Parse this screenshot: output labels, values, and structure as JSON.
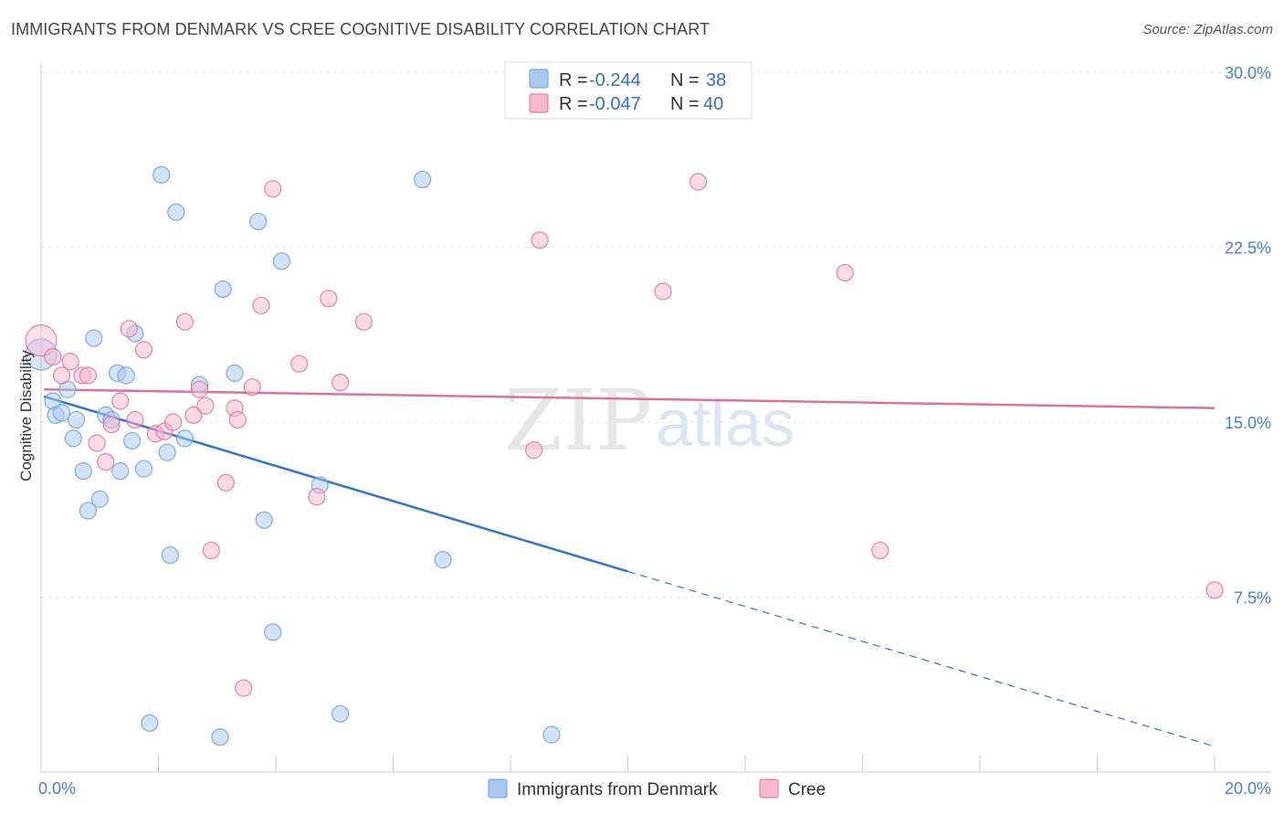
{
  "header": {
    "title": "IMMIGRANTS FROM DENMARK VS CREE COGNITIVE DISABILITY CORRELATION CHART",
    "source": "Source: ZipAtlas.com"
  },
  "watermark": {
    "zip": "ZIP",
    "atlas": "atlas"
  },
  "legend": {
    "rows": [
      {
        "r_label": "R =",
        "r_value": "-0.244",
        "n_label": "N =",
        "n_value": "38",
        "color": "#a8c8f0"
      },
      {
        "r_label": "R =",
        "r_value": "-0.047",
        "n_label": "N =",
        "n_value": "40",
        "color": "#f5b8cc"
      }
    ]
  },
  "chart_data": {
    "type": "scatter",
    "title": "IMMIGRANTS FROM DENMARK VS CREE COGNITIVE DISABILITY CORRELATION CHART",
    "xlabel": "",
    "ylabel": "Cognitive Disability",
    "xlim": [
      0,
      20
    ],
    "ylim": [
      0,
      30
    ],
    "x_tick_labels": [
      "0.0%",
      "20.0%"
    ],
    "y_ticks": [
      7.5,
      15.0,
      22.5,
      30.0
    ],
    "y_tick_labels": [
      "7.5%",
      "15.0%",
      "22.5%",
      "30.0%"
    ],
    "grid": true,
    "series": [
      {
        "name": "Immigrants from Denmark",
        "color": "#6a9ee0",
        "fill": "#a8c8f0",
        "trend": {
          "x0": 0.05,
          "y0": 16.1,
          "x1": 10.0,
          "y1": 8.6,
          "dash_to_x": 20.0,
          "dash_to_y": 1.1
        },
        "points": [
          [
            0.0,
            17.9
          ],
          [
            0.2,
            15.9
          ],
          [
            0.25,
            15.3
          ],
          [
            0.35,
            15.4
          ],
          [
            0.45,
            16.4
          ],
          [
            0.55,
            14.3
          ],
          [
            0.6,
            15.1
          ],
          [
            0.72,
            12.9
          ],
          [
            0.8,
            11.2
          ],
          [
            0.9,
            18.6
          ],
          [
            1.0,
            11.7
          ],
          [
            1.1,
            15.3
          ],
          [
            1.2,
            15.1
          ],
          [
            1.3,
            17.1
          ],
          [
            1.35,
            12.9
          ],
          [
            1.45,
            17.0
          ],
          [
            1.55,
            14.2
          ],
          [
            1.6,
            18.8
          ],
          [
            1.75,
            13.0
          ],
          [
            2.05,
            25.6
          ],
          [
            2.15,
            13.7
          ],
          [
            2.2,
            9.3
          ],
          [
            2.3,
            24.0
          ],
          [
            2.45,
            14.3
          ],
          [
            2.7,
            16.6
          ],
          [
            3.1,
            20.7
          ],
          [
            3.3,
            17.1
          ],
          [
            3.7,
            23.6
          ],
          [
            3.8,
            10.8
          ],
          [
            3.95,
            6.0
          ],
          [
            4.1,
            21.9
          ],
          [
            4.75,
            12.3
          ],
          [
            5.1,
            2.5
          ],
          [
            6.5,
            25.4
          ],
          [
            6.85,
            9.1
          ],
          [
            8.7,
            1.6
          ],
          [
            1.85,
            2.1
          ],
          [
            3.05,
            1.5
          ]
        ]
      },
      {
        "name": "Cree",
        "color": "#e07098",
        "fill": "#f5b8cc",
        "trend": {
          "x0": 0.05,
          "y0": 16.4,
          "x1": 20.0,
          "y1": 15.6
        },
        "points": [
          [
            0.0,
            18.5
          ],
          [
            0.2,
            17.8
          ],
          [
            0.35,
            17.0
          ],
          [
            0.5,
            17.6
          ],
          [
            0.7,
            17.0
          ],
          [
            0.8,
            17.0
          ],
          [
            0.95,
            14.1
          ],
          [
            1.1,
            13.3
          ],
          [
            1.2,
            14.9
          ],
          [
            1.35,
            15.9
          ],
          [
            1.5,
            19.0
          ],
          [
            1.6,
            15.1
          ],
          [
            1.75,
            18.1
          ],
          [
            1.95,
            14.5
          ],
          [
            2.1,
            14.6
          ],
          [
            2.25,
            15.0
          ],
          [
            2.45,
            19.3
          ],
          [
            2.6,
            15.3
          ],
          [
            2.7,
            16.4
          ],
          [
            2.8,
            15.7
          ],
          [
            2.9,
            9.5
          ],
          [
            3.15,
            12.4
          ],
          [
            3.3,
            15.6
          ],
          [
            3.35,
            15.1
          ],
          [
            3.6,
            16.5
          ],
          [
            3.75,
            20.0
          ],
          [
            3.95,
            25.0
          ],
          [
            4.4,
            17.5
          ],
          [
            4.7,
            11.8
          ],
          [
            4.9,
            20.3
          ],
          [
            5.1,
            16.7
          ],
          [
            5.5,
            19.3
          ],
          [
            3.45,
            3.6
          ],
          [
            8.4,
            13.8
          ],
          [
            8.5,
            22.8
          ],
          [
            10.6,
            20.6
          ],
          [
            11.2,
            25.3
          ],
          [
            13.7,
            21.4
          ],
          [
            14.3,
            9.5
          ],
          [
            20.0,
            7.8
          ]
        ]
      }
    ]
  }
}
